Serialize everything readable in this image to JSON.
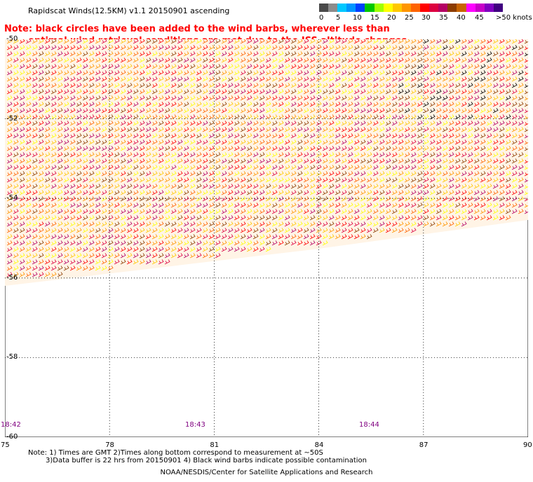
{
  "title": "Rapidscat Winds(12.5KM) v1.1 20150901 ascending",
  "note": {
    "line1": "Note: black circles have been added to the wind barbs, wherever less than",
    "line2": "optimal wind retrieval conditions are met due to the ISS altitude changes."
  },
  "legend": {
    "labels": [
      "0",
      "5",
      "10",
      "15",
      "20",
      "25",
      "30",
      "35",
      "40",
      "45",
      ">50 knots"
    ],
    "colors": [
      "#4a4a4a",
      "#8c8c8c",
      "#00c8ff",
      "#0096ff",
      "#0040ff",
      "#00c800",
      "#a0ff00",
      "#ffff00",
      "#ffc800",
      "#ff9600",
      "#ff6400",
      "#ff0000",
      "#dc0040",
      "#b40064",
      "#8c3c00",
      "#c86400",
      "#ff00ff",
      "#c800c8",
      "#8000c0",
      "#400080"
    ]
  },
  "axes": {
    "lat_labels": [
      "-50",
      "-52",
      "-54",
      "-56",
      "-58",
      "-60"
    ],
    "lon_labels": [
      "75",
      "78",
      "81",
      "84",
      "87",
      "90"
    ],
    "lat_range": [
      -60,
      -50
    ],
    "lon_range": [
      75,
      90
    ]
  },
  "times": [
    "18:42",
    "18:43",
    "18:44"
  ],
  "footnotes": {
    "line1": "Note: 1) Times are GMT 2)Times along bottom correspond to measurement at ~50S",
    "line2": "3)Data buffer is 22 hrs from 20150901 4) Black wind barbs indicate possible contamination"
  },
  "credit": "NOAA/NESDIS/Center for Satellite Applications and Research"
}
